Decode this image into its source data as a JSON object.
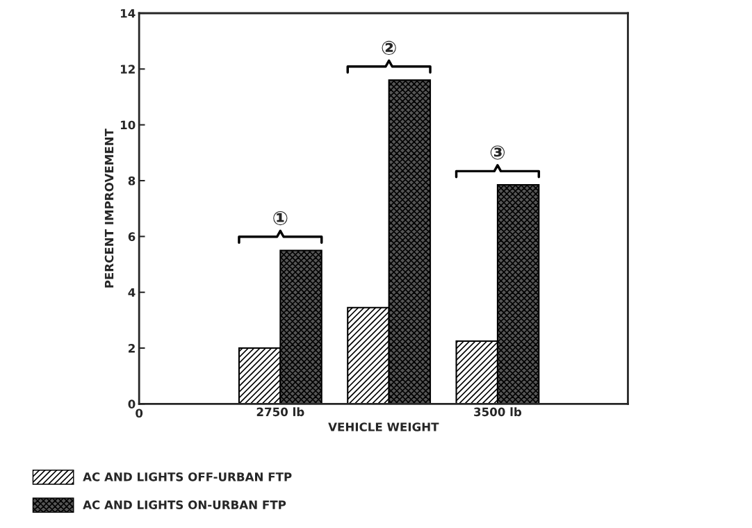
{
  "chart_data": {
    "type": "bar",
    "xlabel": "VEHICLE WEIGHT",
    "ylabel": "PERCENT IMPROVEMENT",
    "categories": [
      "2750 lb",
      null,
      "3500 lb"
    ],
    "ylim": [
      0,
      14
    ],
    "yticks": [
      0,
      2,
      4,
      6,
      8,
      10,
      12,
      14
    ],
    "series": [
      {
        "name": "AC AND LIGHTS OFF-URBAN FTP",
        "color": "#000000",
        "values": [
          2.0,
          3.45,
          2.25
        ]
      },
      {
        "name": "AC AND LIGHTS ON-URBAN FTP",
        "color": "#000000",
        "values": [
          5.5,
          11.6,
          7.85
        ]
      }
    ],
    "annotations": [
      "0",
      "①",
      "②",
      "③"
    ],
    "legend": "bottom left",
    "grid": false
  }
}
